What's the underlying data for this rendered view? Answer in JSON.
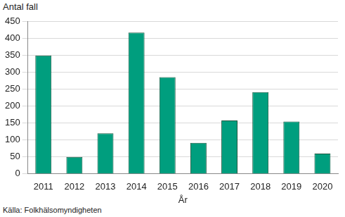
{
  "chart_data": {
    "type": "bar",
    "ylabel": "Antal fall",
    "xlabel": "År",
    "annotations": [
      "Källa: Folkhälsomyndigheten"
    ],
    "categories": [
      "2011",
      "2012",
      "2013",
      "2014",
      "2015",
      "2016",
      "2017",
      "2018",
      "2019",
      "2020"
    ],
    "values": [
      350,
      50,
      120,
      418,
      286,
      92,
      158,
      242,
      155,
      60
    ],
    "color": "#009e7e",
    "ylim": [
      0,
      450
    ],
    "yticks": [
      0,
      50,
      100,
      150,
      200,
      250,
      300,
      350,
      400,
      450
    ],
    "grid": true
  }
}
